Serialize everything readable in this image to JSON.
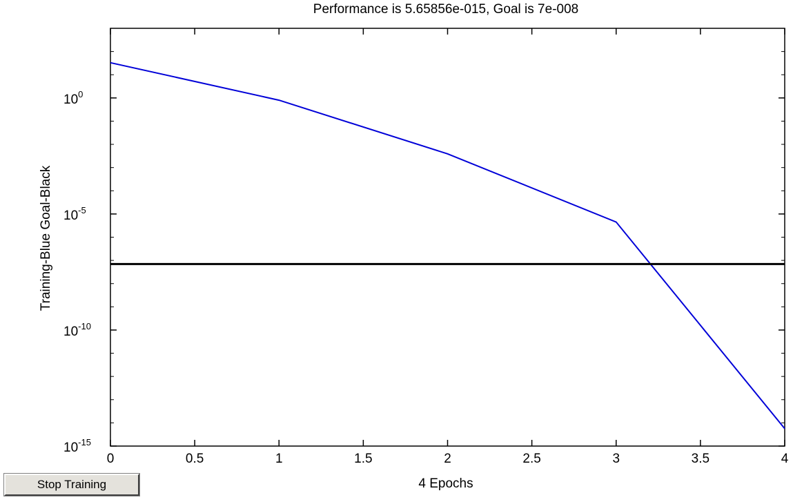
{
  "window": {
    "stop_button_label": "Stop Training"
  },
  "colors": {
    "training": "#0000d8",
    "goal": "#000000",
    "axes": "#000000",
    "background": "#ffffff"
  },
  "chart_data": {
    "type": "line",
    "title": "Performance is  5.65856e-015,  Goal is  7e-008",
    "xlabel": "4 Epochs",
    "ylabel": "Training-Blue  Goal-Black",
    "xlim": [
      0,
      4
    ],
    "ylim": [
      1e-15,
      1000
    ],
    "yscale": "log",
    "grid": false,
    "xticks": [
      "0",
      "0.5",
      "1",
      "1.5",
      "2",
      "2.5",
      "3",
      "3.5",
      "4"
    ],
    "xtick_values": [
      0,
      0.5,
      1,
      1.5,
      2,
      2.5,
      3,
      3.5,
      4
    ],
    "yticks": [
      {
        "base": "10",
        "exp": "0",
        "value": 1
      },
      {
        "base": "10",
        "exp": "-5",
        "value": 1e-05
      },
      {
        "base": "10",
        "exp": "-10",
        "value": 1e-10
      },
      {
        "base": "10",
        "exp": "-15",
        "value": 1e-15
      }
    ],
    "series": [
      {
        "key": "training",
        "x": [
          0,
          1,
          2,
          3,
          4
        ],
        "y": [
          33,
          0.8,
          0.0039,
          4.5e-06,
          5.65856e-15
        ]
      },
      {
        "key": "goal",
        "x": [
          0,
          4
        ],
        "y": [
          7e-08,
          7e-08
        ]
      }
    ]
  }
}
